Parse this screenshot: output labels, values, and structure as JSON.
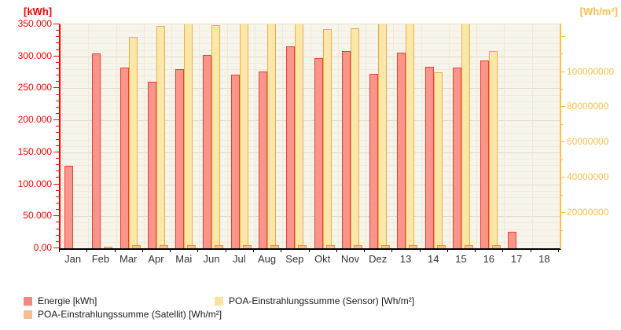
{
  "chart_data": {
    "type": "bar",
    "title": "",
    "categories": [
      "Jan",
      "Feb",
      "Mar",
      "Apr",
      "Mai",
      "Jun",
      "Jul",
      "Aug",
      "Sep",
      "Okt",
      "Nov",
      "Dez",
      "13",
      "14",
      "15",
      "16",
      "17",
      "18"
    ],
    "left_axis": {
      "title": "[kWh]",
      "color": "#ff0000",
      "min": 0,
      "max": 350000,
      "major_step": 50000,
      "minor_step": 10000,
      "tick_labels": [
        "0,00",
        "50.000",
        "100.000",
        "150.000",
        "200.000",
        "250.000",
        "300.000",
        "350.000"
      ]
    },
    "right_axis": {
      "title": "[Wh/m²]",
      "color": "#ffbe4a",
      "min": 0,
      "max": 127000000,
      "major_step": 20000000,
      "minor_step": 10000000,
      "tick_labels": [
        "20000000",
        "40000000",
        "60000000",
        "80000000",
        "100000000"
      ]
    },
    "grid": true,
    "legend_position": "bottom",
    "series": [
      {
        "key": "energie",
        "name": "Energie [kWh]",
        "axis": "left",
        "fill": "#fa958c",
        "border": "#ee3f30",
        "values": [
          129000,
          304000,
          282000,
          260000,
          280000,
          302000,
          272000,
          276000,
          316000,
          297000,
          308000,
          273000,
          306000,
          284000,
          283000,
          294000,
          26000,
          null
        ]
      },
      {
        "key": "satellit",
        "name": "POA-Einstrahlungssumme (Satellit) [Wh/m²]",
        "axis": "right",
        "fill": "#f8c28f",
        "border": "#ef9330",
        "values": [
          null,
          1000000,
          2000000,
          2000000,
          2000000,
          2000000,
          2000000,
          2000000,
          2000000,
          2000000,
          2000000,
          2000000,
          2000000,
          2000000,
          2000000,
          2000000,
          null,
          null
        ]
      },
      {
        "key": "sensor",
        "name": "POA-Einstrahlungssumme (Sensor) [Wh/m²]",
        "axis": "right",
        "fill": "#fbe7a9",
        "border": "#f0ac44",
        "values": [
          null,
          null,
          120000000,
          126000000,
          127000000,
          126500000,
          127000000,
          127000000,
          127000000,
          124500000,
          125000000,
          127000000,
          127000000,
          100000000,
          127000000,
          112000000,
          null,
          null
        ]
      }
    ],
    "notes": "Sensor bars for Mai, Jul, Aug, Sep, Dez, 13 and 15 reach/clip at the top of the right axis (~127000000)."
  },
  "legend": [
    {
      "label": "Energie [kWh]",
      "color": "#f2897f"
    },
    {
      "label": "POA-Einstrahlungssumme (Satellit) [Wh/m²]",
      "color": "#f5be92"
    },
    {
      "label": "POA-Einstrahlungssumme (Sensor) [Wh/m²]",
      "color": "#fae3a2"
    }
  ]
}
